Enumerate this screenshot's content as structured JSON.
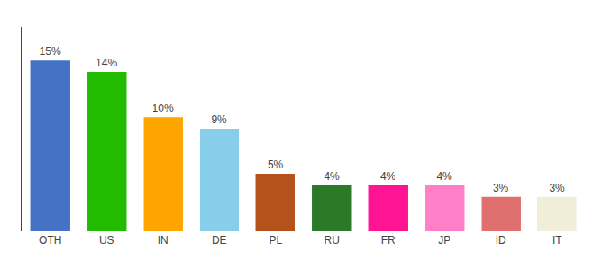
{
  "chart_data": {
    "type": "bar",
    "categories": [
      "OTH",
      "US",
      "IN",
      "DE",
      "PL",
      "RU",
      "FR",
      "JP",
      "ID",
      "IT"
    ],
    "values": [
      15,
      14,
      10,
      9,
      5,
      4,
      4,
      4,
      3,
      3
    ],
    "value_labels": [
      "15%",
      "14%",
      "10%",
      "9%",
      "5%",
      "4%",
      "4%",
      "4%",
      "3%",
      "3%"
    ],
    "colors": [
      "#4472C4",
      "#22BB00",
      "#FFA500",
      "#87CEEB",
      "#B5521B",
      "#2A7A2A",
      "#FF1493",
      "#FF80C8",
      "#E07070",
      "#F0EDD8"
    ],
    "ylim": [
      0,
      18
    ],
    "data_labels": true,
    "tick_labels": "x",
    "grid": false
  }
}
